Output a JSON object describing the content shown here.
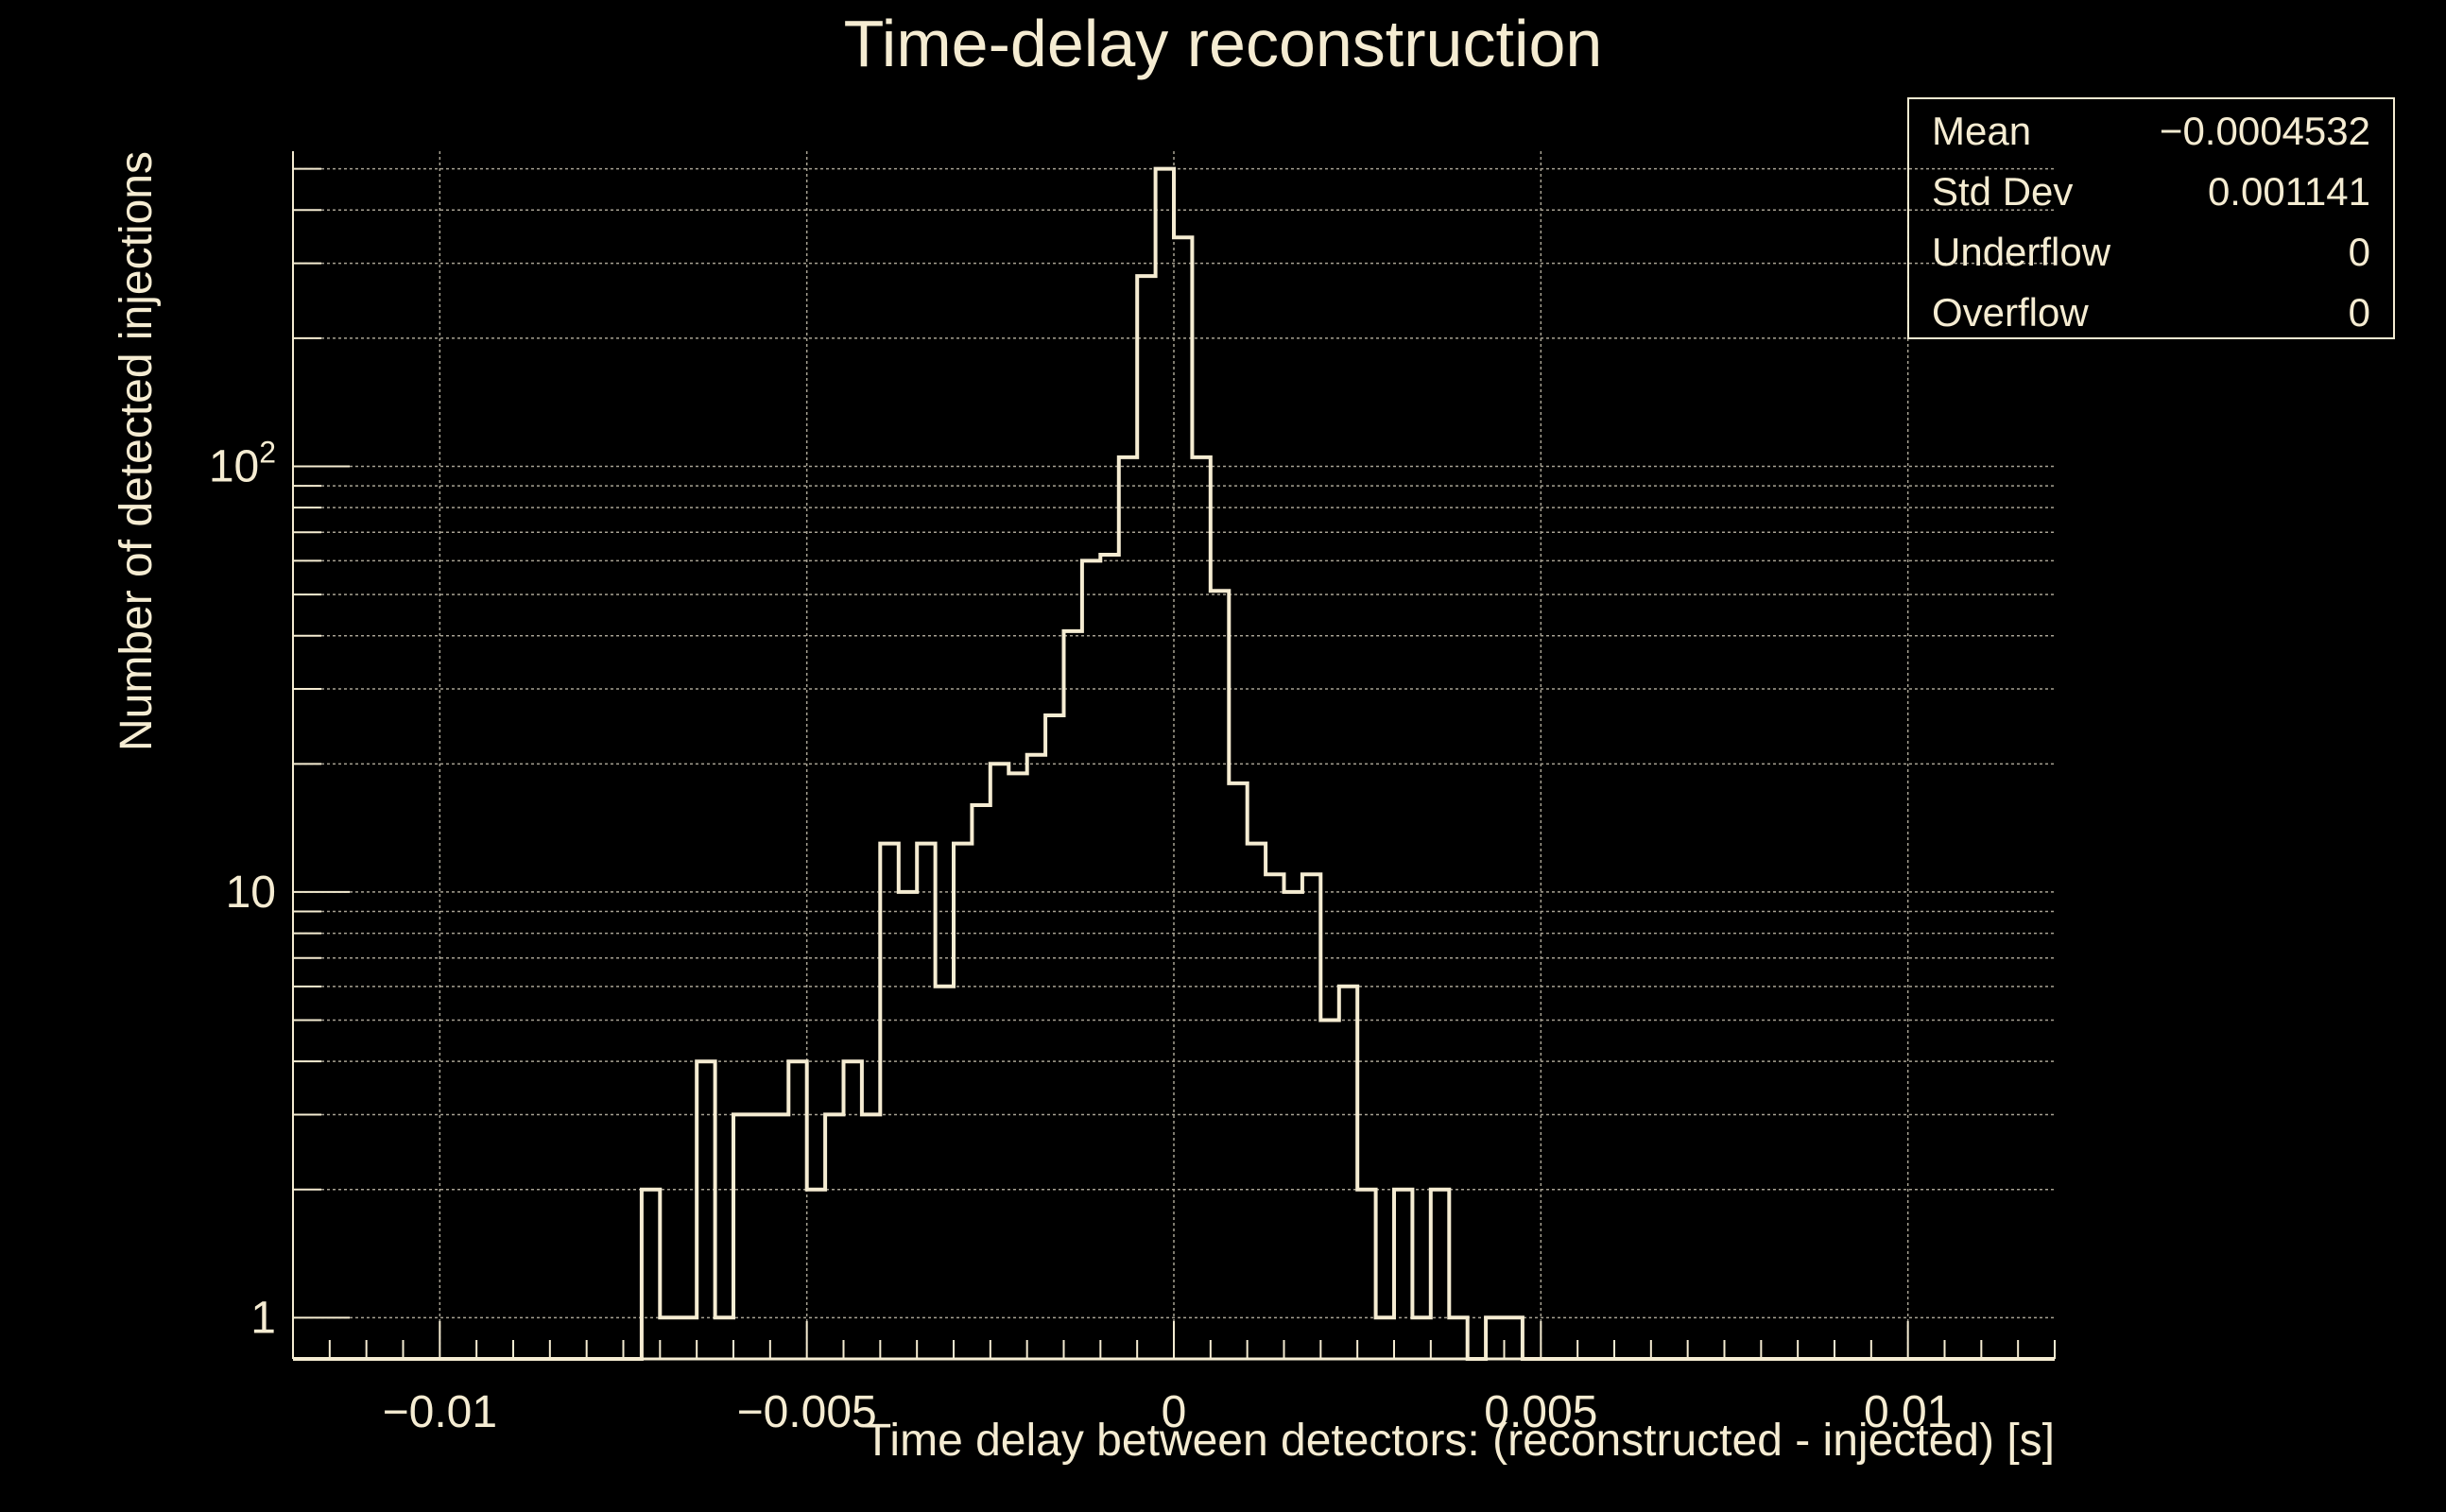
{
  "chart_data": {
    "type": "histogram",
    "title": "Time-delay reconstruction",
    "xlabel": "Time delay between detectors: (reconstructed - injected) [s]",
    "ylabel": "Number of detected injections",
    "x_range": [
      -0.012,
      0.012
    ],
    "y_scale": "log",
    "y_range": [
      0.8,
      550
    ],
    "grid": true,
    "legend": "none",
    "x_ticks": [
      {
        "value": -0.01,
        "label": "−0.01"
      },
      {
        "value": -0.005,
        "label": "−0.005"
      },
      {
        "value": 0,
        "label": "0"
      },
      {
        "value": 0.005,
        "label": "0.005"
      },
      {
        "value": 0.01,
        "label": "0.01"
      }
    ],
    "y_ticks": [
      {
        "value": 1,
        "label": "1",
        "sup": ""
      },
      {
        "value": 10,
        "label": "10",
        "sup": ""
      },
      {
        "value": 100,
        "label": "10",
        "sup": "2"
      }
    ],
    "bin_width": 0.00025,
    "bin_start": -0.012,
    "counts": [
      0,
      0,
      0,
      0,
      0,
      0,
      0,
      0,
      0,
      0,
      0,
      0,
      0,
      0,
      0,
      0,
      0,
      0,
      0,
      2,
      1,
      1,
      4,
      1,
      3,
      3,
      3,
      4,
      2,
      3,
      4,
      3,
      13,
      10,
      13,
      6,
      13,
      16,
      20,
      19,
      21,
      26,
      41,
      60,
      62,
      105,
      280,
      500,
      345,
      105,
      51,
      18,
      13,
      11,
      10,
      11,
      5,
      6,
      2,
      1,
      2,
      1,
      2,
      1,
      0,
      1,
      1,
      0,
      0,
      0,
      0,
      0,
      0,
      0,
      0,
      0,
      0,
      0,
      0,
      0,
      0,
      0,
      0,
      0,
      0,
      0,
      0,
      0,
      0,
      0,
      0,
      0,
      0,
      0,
      0,
      0
    ],
    "stats": [
      {
        "label": "Mean",
        "value": "−0.0004532"
      },
      {
        "label": "Std Dev",
        "value": "0.001141"
      },
      {
        "label": "Underflow",
        "value": "0"
      },
      {
        "label": "Overflow",
        "value": "0"
      }
    ],
    "colors": {
      "background": "#000000",
      "foreground": "#f5ecd2",
      "grid": "#a8a293"
    }
  }
}
